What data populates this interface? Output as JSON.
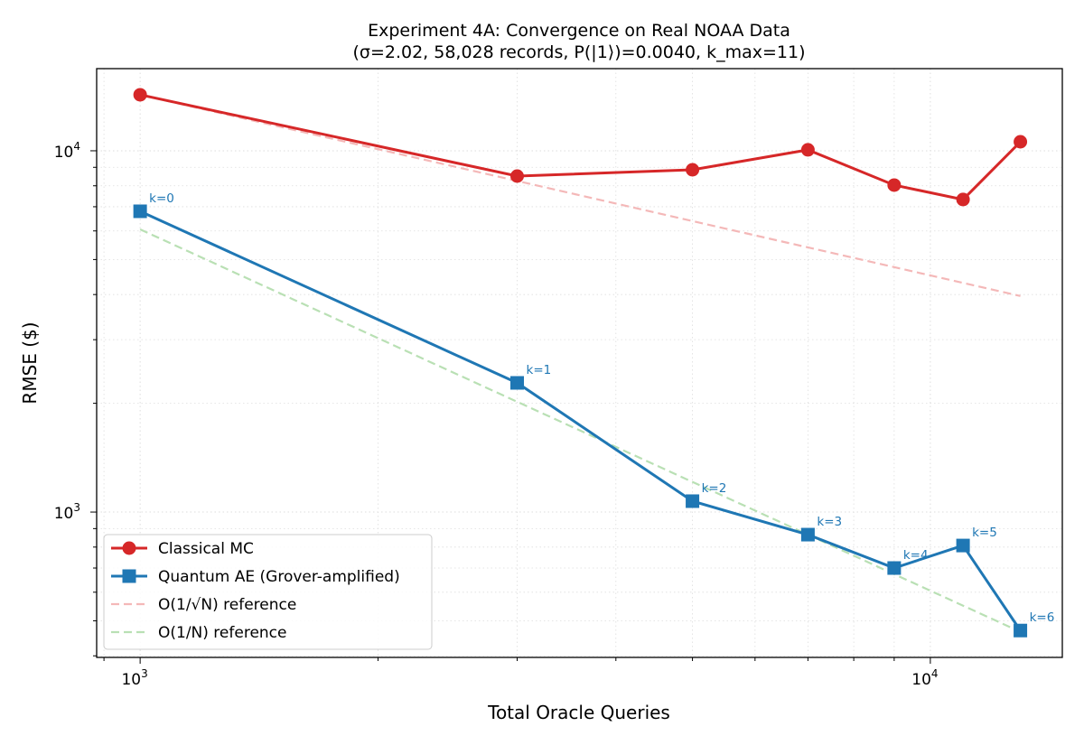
{
  "chart_data": {
    "type": "line",
    "title": "Experiment 4A: Convergence on Real NOAA Data",
    "subtitle": "(σ=2.02, 58,028 records, P(|1⟩)=0.0040, k_max=11)",
    "xlabel": "Total Oracle Queries",
    "ylabel": "RMSE ($)",
    "xscale": "log",
    "yscale": "log",
    "xlim": [
      881,
      14690
    ],
    "ylim": [
      396,
      16880
    ],
    "grid": true,
    "legend_placement": "lower-left",
    "x_ticks": [
      {
        "value": 1000,
        "base": "10",
        "exp": "3"
      },
      {
        "value": 10000,
        "base": "10",
        "exp": "4"
      }
    ],
    "y_ticks": [
      {
        "value": 1000,
        "base": "10",
        "exp": "3"
      },
      {
        "value": 10000,
        "base": "10",
        "exp": "4"
      }
    ],
    "series": [
      {
        "name": "Classical MC",
        "color": "#d62728",
        "marker": "circle",
        "style": "solid",
        "x": [
          1000,
          3000,
          5000,
          7000,
          9000,
          11000,
          13000
        ],
        "y": [
          14290,
          8510,
          8860,
          10060,
          8035,
          7330,
          10590
        ]
      },
      {
        "name": "Quantum AE (Grover-amplified)",
        "color": "#1f77b4",
        "marker": "square",
        "style": "solid",
        "x": [
          1000,
          3000,
          5000,
          7000,
          9000,
          11000,
          13000
        ],
        "y": [
          6800,
          2278,
          1072,
          866,
          700,
          808,
          470
        ],
        "annotations": [
          "k=0",
          "k=1",
          "k=2",
          "k=3",
          "k=4",
          "k=5",
          "k=6"
        ]
      },
      {
        "name": "O(1/√N) reference",
        "color": "#f4b8b8",
        "marker": "none",
        "style": "dashed",
        "x": [
          1000,
          13000
        ],
        "y": [
          14290,
          3963
        ]
      },
      {
        "name": "O(1/N) reference",
        "color": "#b9e0b4",
        "marker": "none",
        "style": "dashed",
        "x": [
          1000,
          13000
        ],
        "y": [
          6060,
          466
        ]
      }
    ]
  }
}
